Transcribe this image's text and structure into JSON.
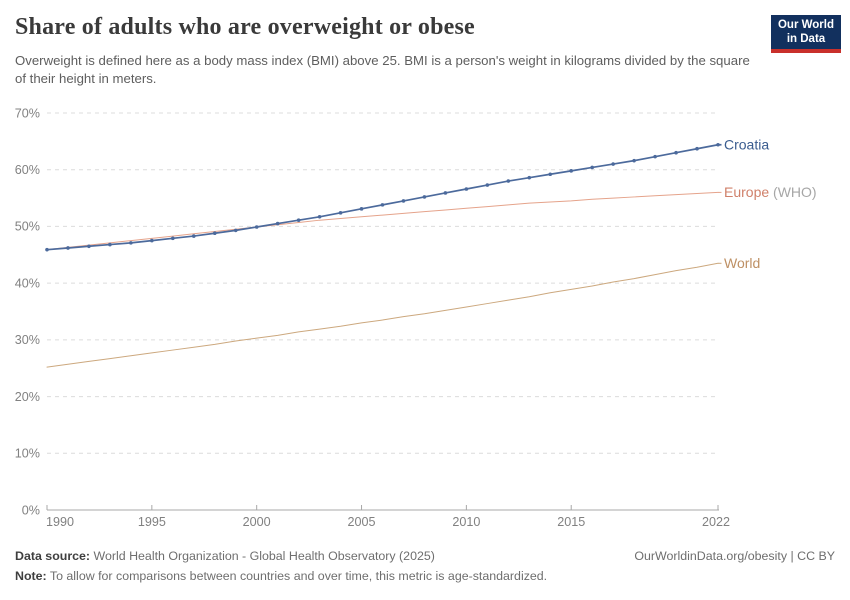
{
  "header": {
    "title": "Share of adults who are overweight or obese",
    "subtitle": "Overweight is defined here as a body mass index (BMI) above 25. BMI is a person's weight in kilograms divided by the square of their height in meters.",
    "logo": {
      "line1": "Our World",
      "line2": "in Data",
      "bg_color": "#12305E",
      "accent_color": "#C9302B"
    }
  },
  "footer": {
    "data_source_label": "Data source:",
    "data_source": "World Health Organization - Global Health Observatory (2025)",
    "note_label": "Note:",
    "note": "To allow for comparisons between countries and over time, this metric is age-standardized.",
    "attribution": "OurWorldinData.org/obesity | CC BY"
  },
  "chart_data": {
    "type": "line",
    "title": "Share of adults who are overweight or obese",
    "xlabel": "",
    "ylabel": "",
    "xlim": [
      1990,
      2022
    ],
    "ylim": [
      0,
      70
    ],
    "grid": "horizontal-dashed",
    "legend_position": "right-of-line-ends",
    "x": [
      1990,
      1991,
      1992,
      1993,
      1994,
      1995,
      1996,
      1997,
      1998,
      1999,
      2000,
      2001,
      2002,
      2003,
      2004,
      2005,
      2006,
      2007,
      2008,
      2009,
      2010,
      2011,
      2012,
      2013,
      2014,
      2015,
      2016,
      2017,
      2018,
      2019,
      2020,
      2021,
      2022
    ],
    "x_ticks": [
      {
        "value": 1990,
        "label": "1990"
      },
      {
        "value": 1995,
        "label": "1995"
      },
      {
        "value": 2000,
        "label": "2000"
      },
      {
        "value": 2005,
        "label": "2005"
      },
      {
        "value": 2010,
        "label": "2010"
      },
      {
        "value": 2015,
        "label": "2015"
      },
      {
        "value": 2022,
        "label": "2022"
      }
    ],
    "y_ticks": [
      {
        "value": 0,
        "label": "0%"
      },
      {
        "value": 10,
        "label": "10%"
      },
      {
        "value": 20,
        "label": "20%"
      },
      {
        "value": 30,
        "label": "30%"
      },
      {
        "value": 40,
        "label": "40%"
      },
      {
        "value": 50,
        "label": "50%"
      },
      {
        "value": 60,
        "label": "60%"
      },
      {
        "value": 70,
        "label": "70%"
      }
    ],
    "series": [
      {
        "name": "Croatia",
        "label": "Croatia",
        "label_suffix": "",
        "color": "#4C6A9C",
        "label_color": "#3A5C8F",
        "markers": true,
        "line_width": 1.7,
        "values": [
          45.9,
          46.2,
          46.5,
          46.8,
          47.1,
          47.5,
          47.9,
          48.3,
          48.8,
          49.3,
          49.9,
          50.5,
          51.1,
          51.7,
          52.4,
          53.1,
          53.8,
          54.5,
          55.2,
          55.9,
          56.6,
          57.3,
          58.0,
          58.6,
          59.2,
          59.8,
          60.4,
          61.0,
          61.6,
          62.3,
          63.0,
          63.7,
          64.4
        ]
      },
      {
        "name": "Europe",
        "label": "Europe",
        "label_suffix": " (WHO)",
        "color": "#E5A38B",
        "label_color": "#D0806A",
        "suffix_color": "#A6A6A6",
        "markers": false,
        "line_width": 1,
        "values": [
          45.9,
          46.3,
          46.7,
          47.1,
          47.5,
          47.9,
          48.3,
          48.7,
          49.1,
          49.5,
          49.9,
          50.3,
          50.7,
          51.1,
          51.4,
          51.7,
          52.0,
          52.3,
          52.6,
          52.9,
          53.2,
          53.5,
          53.8,
          54.1,
          54.3,
          54.5,
          54.8,
          55.0,
          55.2,
          55.4,
          55.6,
          55.8,
          56.0
        ]
      },
      {
        "name": "World",
        "label": "World",
        "label_suffix": "",
        "color": "#CCA87E",
        "label_color": "#BE9064",
        "markers": false,
        "line_width": 1,
        "values": [
          25.2,
          25.7,
          26.2,
          26.7,
          27.2,
          27.7,
          28.2,
          28.7,
          29.2,
          29.8,
          30.3,
          30.8,
          31.4,
          31.9,
          32.4,
          33.0,
          33.5,
          34.1,
          34.6,
          35.2,
          35.8,
          36.4,
          37.0,
          37.6,
          38.3,
          38.9,
          39.5,
          40.2,
          40.8,
          41.5,
          42.2,
          42.8,
          43.5
        ]
      }
    ]
  }
}
